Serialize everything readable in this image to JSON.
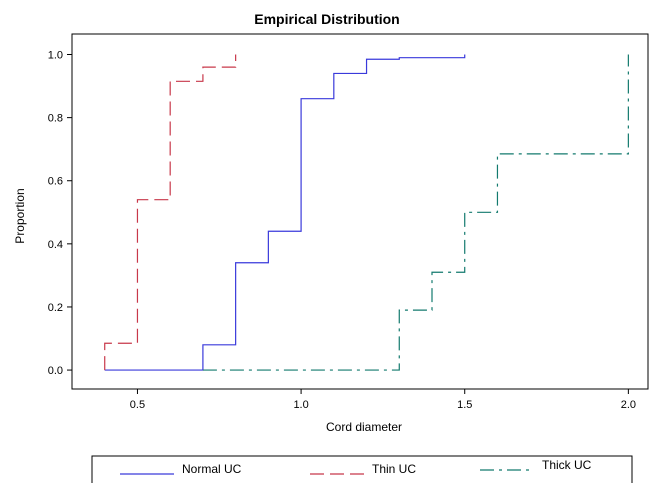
{
  "chart_data": {
    "type": "line",
    "step": true,
    "title": "Empirical Distribution",
    "xlabel": "Cord diameter",
    "ylabel": "Proportion",
    "xlim": [
      0.3,
      2.06
    ],
    "ylim": [
      -0.06,
      1.065
    ],
    "xticks": [
      0.5,
      1.0,
      1.5,
      2.0
    ],
    "xtick_labels": [
      "0.5",
      "1.0",
      "1.5",
      "2.0"
    ],
    "yticks": [
      0.0,
      0.2,
      0.4,
      0.6,
      0.8,
      1.0
    ],
    "ytick_labels": [
      "0.0",
      "0.2",
      "0.4",
      "0.6",
      "0.8",
      "1.0"
    ],
    "grid": false,
    "legend_position": "bottom",
    "series": [
      {
        "name": "Normal UC",
        "color": "#3a3adb",
        "dash": "solid",
        "x": [
          0.4,
          0.7,
          0.8,
          0.9,
          1.0,
          1.1,
          1.2,
          1.3,
          1.5
        ],
        "y": [
          0.0,
          0.08,
          0.34,
          0.44,
          0.86,
          0.94,
          0.985,
          0.99,
          1.0
        ]
      },
      {
        "name": "Thin UC",
        "color": "#c8384a",
        "dash": "dashed",
        "x": [
          0.4,
          0.5,
          0.6,
          0.7,
          0.8
        ],
        "y": [
          0.085,
          0.54,
          0.915,
          0.96,
          1.0
        ],
        "end_x": 0.8
      },
      {
        "name": "Thick UC",
        "color": "#137a6e",
        "dash": "dashdot",
        "x": [
          0.7,
          1.3,
          1.4,
          1.5,
          1.6,
          2.0
        ],
        "y": [
          0.0,
          0.19,
          0.31,
          0.5,
          0.685,
          1.0
        ]
      }
    ]
  }
}
